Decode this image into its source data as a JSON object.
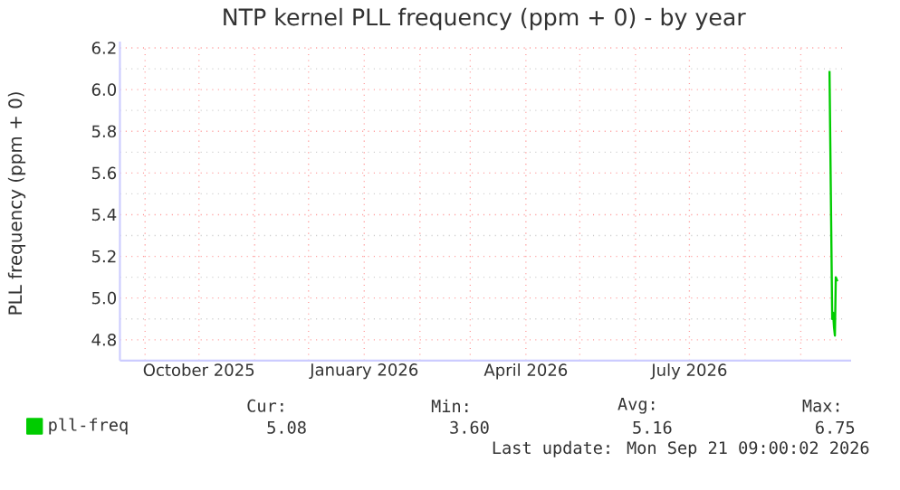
{
  "chart_data": {
    "type": "line",
    "title": "NTP kernel PLL frequency (ppm + 0) - by year",
    "ylabel": "PLL frequency (ppm + 0)",
    "xlim": [
      "2025-08-18",
      "2026-09-25"
    ],
    "ylim": [
      4.7,
      6.2
    ],
    "yticks": [
      4.8,
      {
        "value": 5,
        "label": "5.0"
      },
      5.2,
      5.4,
      5.6,
      5.8,
      {
        "value": 6,
        "label": "6.0"
      },
      6.2
    ],
    "xticks": [
      {
        "value": "2025-09-01",
        "label": null
      },
      {
        "value": "2025-10-01",
        "label": "October 2025"
      },
      {
        "value": "2025-11-01",
        "label": null
      },
      {
        "value": "2025-12-01",
        "label": null
      },
      {
        "value": "2026-01-01",
        "label": "January 2026"
      },
      {
        "value": "2026-02-01",
        "label": null
      },
      {
        "value": "2026-03-01",
        "label": null
      },
      {
        "value": "2026-04-01",
        "label": "April 2026"
      },
      {
        "value": "2026-05-01",
        "label": null
      },
      {
        "value": "2026-06-01",
        "label": null
      },
      {
        "value": "2026-07-01",
        "label": "July 2026"
      },
      {
        "value": "2026-08-01",
        "label": null
      },
      {
        "value": "2026-09-01",
        "label": null
      }
    ],
    "grid": true,
    "legend": "bottom",
    "series": [
      {
        "name": "pll-freq",
        "color": "#00cc00",
        "x": [
          "2026-09-17T00:00",
          "2026-09-18T12:00",
          "2026-09-19T00:00",
          "2026-09-19T12:00",
          "2026-09-20T00:00",
          "2026-09-20T12:00",
          "2026-09-21T09:00"
        ],
        "values": [
          6.09,
          4.9,
          4.93,
          4.86,
          4.82,
          5.1,
          5.08
        ]
      }
    ],
    "annotations": [
      "Cur:",
      "Min:",
      "Avg:",
      "Max:",
      "5.08",
      "3.60",
      "5.16",
      "6.75",
      "Last update: Mon Sep 21 09:00:02 2026"
    ]
  }
}
